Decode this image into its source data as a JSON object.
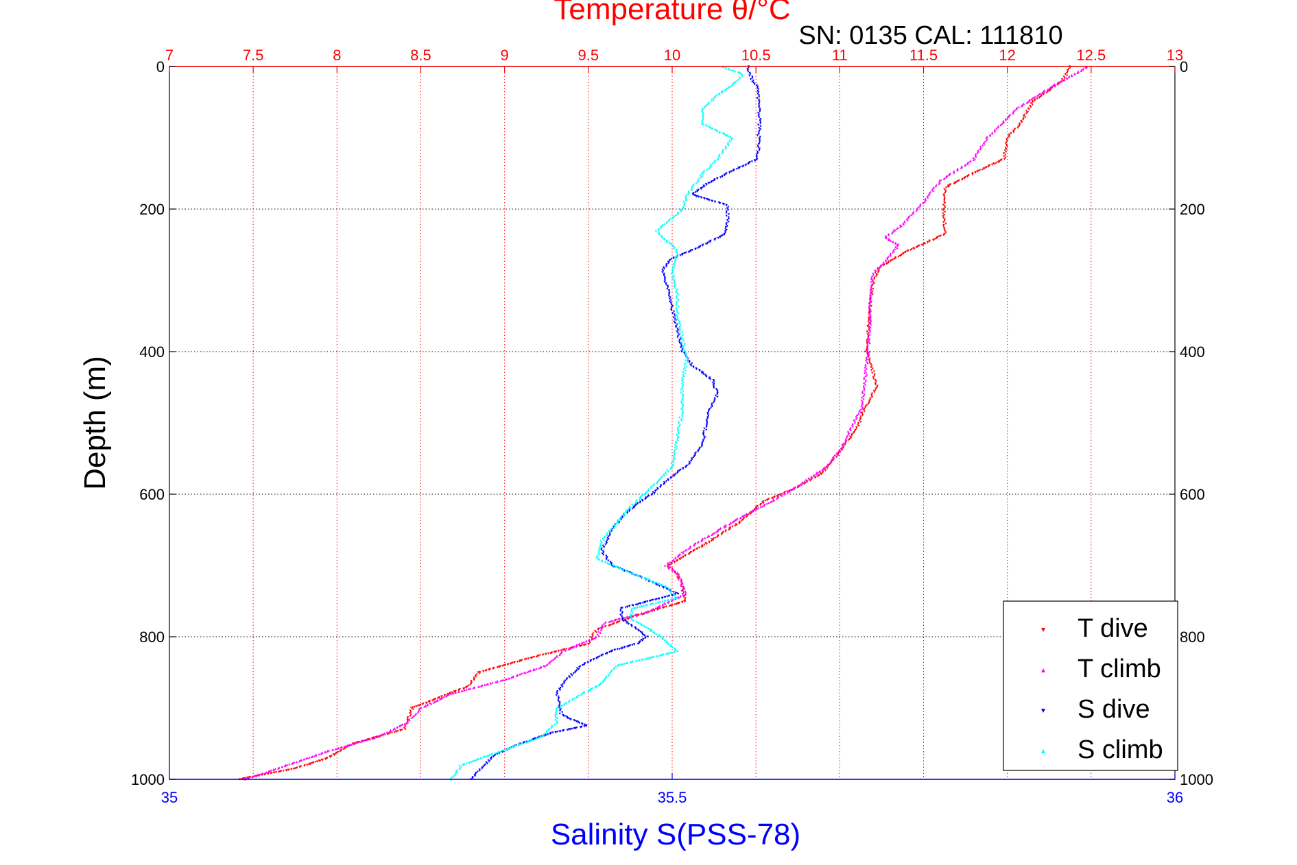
{
  "chart_data": {
    "type": "scatter",
    "title": "Temperature θ/°C",
    "subtitle": "SN: 0135  CAL: 111810",
    "ylabel": "Depth (m)",
    "xlabel": "Salinity S(PSS-78)",
    "y_axis": {
      "label": "Depth (m)",
      "range": [
        0,
        1000
      ],
      "reversed": true,
      "ticks": [
        "0",
        "200",
        "400",
        "600",
        "800",
        "1000"
      ],
      "grid": true
    },
    "x_top_axis": {
      "quantity": "temperature",
      "range": [
        7,
        13
      ],
      "ticks": [
        "7",
        "7.5",
        "8",
        "8.5",
        "9",
        "9.5",
        "10",
        "10.5",
        "11",
        "11.5",
        "12",
        "12.5",
        "13"
      ],
      "grid": true,
      "color": "#ff0000"
    },
    "x_bottom_axis": {
      "quantity": "salinity",
      "range": [
        35,
        36
      ],
      "ticks": [
        "35",
        "35.5",
        "36"
      ],
      "color": "#0000ff"
    },
    "legend": {
      "position": "bottom-right",
      "entries": [
        "T dive",
        "T climb",
        "S dive",
        "S climb"
      ]
    },
    "series": [
      {
        "name": "T dive",
        "axis": "temperature",
        "color": "#ff0000",
        "marker": "triangle-down",
        "points": [
          [
            12.38,
            0
          ],
          [
            12.33,
            20
          ],
          [
            12.15,
            50
          ],
          [
            12.08,
            80
          ],
          [
            12.0,
            100
          ],
          [
            11.98,
            130
          ],
          [
            11.8,
            150
          ],
          [
            11.63,
            170
          ],
          [
            11.62,
            200
          ],
          [
            11.63,
            235
          ],
          [
            11.4,
            260
          ],
          [
            11.25,
            280
          ],
          [
            11.2,
            300
          ],
          [
            11.18,
            340
          ],
          [
            11.17,
            370
          ],
          [
            11.16,
            400
          ],
          [
            11.2,
            430
          ],
          [
            11.22,
            450
          ],
          [
            11.15,
            480
          ],
          [
            11.1,
            510
          ],
          [
            11.0,
            540
          ],
          [
            10.9,
            570
          ],
          [
            10.75,
            590
          ],
          [
            10.55,
            610
          ],
          [
            10.4,
            640
          ],
          [
            10.2,
            670
          ],
          [
            9.98,
            700
          ],
          [
            10.05,
            720
          ],
          [
            10.08,
            750
          ],
          [
            9.8,
            770
          ],
          [
            9.55,
            790
          ],
          [
            9.5,
            810
          ],
          [
            9.15,
            830
          ],
          [
            8.85,
            850
          ],
          [
            8.78,
            870
          ],
          [
            8.45,
            900
          ],
          [
            8.4,
            930
          ],
          [
            8.1,
            950
          ],
          [
            7.95,
            970
          ],
          [
            7.75,
            985
          ],
          [
            7.42,
            1000
          ]
        ]
      },
      {
        "name": "T climb",
        "axis": "temperature",
        "color": "#ff00ff",
        "marker": "triangle-up",
        "points": [
          [
            12.48,
            0
          ],
          [
            12.25,
            30
          ],
          [
            12.05,
            60
          ],
          [
            11.88,
            100
          ],
          [
            11.8,
            130
          ],
          [
            11.6,
            160
          ],
          [
            11.5,
            190
          ],
          [
            11.38,
            220
          ],
          [
            11.27,
            240
          ],
          [
            11.35,
            250
          ],
          [
            11.28,
            270
          ],
          [
            11.2,
            290
          ],
          [
            11.18,
            330
          ],
          [
            11.18,
            370
          ],
          [
            11.17,
            400
          ],
          [
            11.15,
            440
          ],
          [
            11.13,
            480
          ],
          [
            11.06,
            510
          ],
          [
            11.0,
            540
          ],
          [
            10.9,
            565
          ],
          [
            10.74,
            590
          ],
          [
            10.55,
            615
          ],
          [
            10.35,
            640
          ],
          [
            10.1,
            675
          ],
          [
            9.96,
            700
          ],
          [
            10.03,
            710
          ],
          [
            10.08,
            740
          ],
          [
            9.85,
            765
          ],
          [
            9.6,
            780
          ],
          [
            9.55,
            800
          ],
          [
            9.35,
            820
          ],
          [
            9.25,
            840
          ],
          [
            9.0,
            860
          ],
          [
            8.68,
            880
          ],
          [
            8.5,
            900
          ],
          [
            8.42,
            920
          ],
          [
            8.25,
            940
          ],
          [
            7.95,
            960
          ],
          [
            7.7,
            980
          ],
          [
            7.45,
            1000
          ]
        ]
      },
      {
        "name": "S dive",
        "axis": "salinity",
        "color": "#0000ff",
        "marker": "triangle-down",
        "points": [
          [
            35.575,
            0
          ],
          [
            35.58,
            20
          ],
          [
            35.585,
            30
          ],
          [
            35.587,
            80
          ],
          [
            35.585,
            130
          ],
          [
            35.555,
            150
          ],
          [
            35.535,
            165
          ],
          [
            35.52,
            180
          ],
          [
            35.555,
            195
          ],
          [
            35.555,
            220
          ],
          [
            35.553,
            235
          ],
          [
            35.525,
            255
          ],
          [
            35.5,
            270
          ],
          [
            35.49,
            285
          ],
          [
            35.495,
            310
          ],
          [
            35.5,
            340
          ],
          [
            35.505,
            370
          ],
          [
            35.51,
            400
          ],
          [
            35.52,
            420
          ],
          [
            35.54,
            440
          ],
          [
            35.545,
            460
          ],
          [
            35.535,
            490
          ],
          [
            35.53,
            530
          ],
          [
            35.515,
            560
          ],
          [
            35.5,
            575
          ],
          [
            35.48,
            600
          ],
          [
            35.455,
            625
          ],
          [
            35.44,
            650
          ],
          [
            35.43,
            680
          ],
          [
            35.44,
            700
          ],
          [
            35.475,
            720
          ],
          [
            35.505,
            740
          ],
          [
            35.45,
            760
          ],
          [
            35.45,
            775
          ],
          [
            35.475,
            800
          ],
          [
            35.465,
            810
          ],
          [
            35.44,
            820
          ],
          [
            35.41,
            840
          ],
          [
            35.395,
            860
          ],
          [
            35.385,
            880
          ],
          [
            35.39,
            910
          ],
          [
            35.415,
            925
          ],
          [
            35.38,
            935
          ],
          [
            35.35,
            950
          ],
          [
            35.325,
            965
          ],
          [
            35.31,
            985
          ],
          [
            35.3,
            1000
          ]
        ]
      },
      {
        "name": "S climb",
        "axis": "salinity",
        "color": "#00ffff",
        "marker": "triangle-up",
        "points": [
          [
            35.55,
            0
          ],
          [
            35.57,
            10
          ],
          [
            35.565,
            20
          ],
          [
            35.545,
            40
          ],
          [
            35.53,
            60
          ],
          [
            35.53,
            80
          ],
          [
            35.56,
            100
          ],
          [
            35.545,
            130
          ],
          [
            35.53,
            150
          ],
          [
            35.515,
            180
          ],
          [
            35.51,
            200
          ],
          [
            35.485,
            230
          ],
          [
            35.49,
            240
          ],
          [
            35.5,
            250
          ],
          [
            35.505,
            260
          ],
          [
            35.5,
            290
          ],
          [
            35.505,
            320
          ],
          [
            35.505,
            350
          ],
          [
            35.51,
            380
          ],
          [
            35.515,
            410
          ],
          [
            35.51,
            440
          ],
          [
            35.51,
            480
          ],
          [
            35.505,
            520
          ],
          [
            35.5,
            560
          ],
          [
            35.48,
            590
          ],
          [
            35.46,
            615
          ],
          [
            35.445,
            640
          ],
          [
            35.43,
            665
          ],
          [
            35.425,
            690
          ],
          [
            35.46,
            710
          ],
          [
            35.495,
            730
          ],
          [
            35.505,
            745
          ],
          [
            35.46,
            760
          ],
          [
            35.46,
            775
          ],
          [
            35.49,
            800
          ],
          [
            35.505,
            820
          ],
          [
            35.445,
            840
          ],
          [
            35.43,
            865
          ],
          [
            35.41,
            880
          ],
          [
            35.385,
            900
          ],
          [
            35.385,
            920
          ],
          [
            35.37,
            940
          ],
          [
            35.34,
            955
          ],
          [
            35.29,
            980
          ],
          [
            35.28,
            1000
          ]
        ]
      }
    ]
  }
}
